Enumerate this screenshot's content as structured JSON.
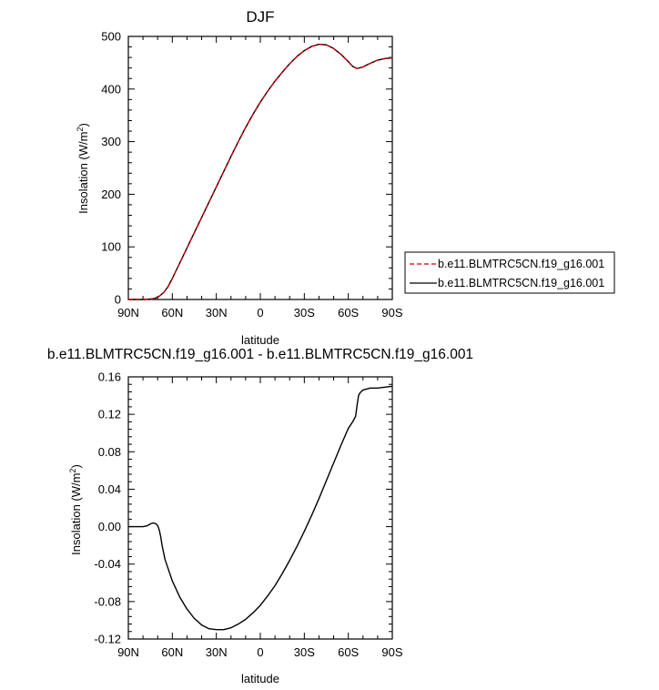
{
  "chart_data": [
    {
      "type": "line",
      "title": "DJF",
      "xlabel": "latitude",
      "ylabel_main": "Insolation (W/m",
      "ylabel_sup": "2",
      "ylabel_close": ")",
      "xlim": [
        90,
        -90
      ],
      "ylim": [
        0,
        500
      ],
      "x_ticks": [
        90,
        60,
        30,
        0,
        -30,
        -60,
        -90
      ],
      "x_tick_labels": [
        "90N",
        "60N",
        "30N",
        "0",
        "30S",
        "60S",
        "90S"
      ],
      "y_ticks": [
        0,
        100,
        200,
        300,
        400,
        500
      ],
      "y_tick_labels": [
        "0",
        "100",
        "200",
        "300",
        "400",
        "500"
      ],
      "legend_position": "right",
      "series": [
        {
          "name": "b.e11.BLMTRC5CN.f19_g16.001",
          "color": "#cc0000",
          "dash": "dashed",
          "x": [
            90,
            85,
            80,
            76,
            72,
            69,
            66,
            63,
            60,
            55,
            50,
            45,
            40,
            35,
            30,
            25,
            20,
            15,
            10,
            5,
            0,
            -5,
            -10,
            -15,
            -20,
            -25,
            -30,
            -35,
            -40,
            -45,
            -50,
            -55,
            -60,
            -63,
            -66,
            -70,
            -75,
            -80,
            -85,
            -90
          ],
          "y": [
            0,
            0,
            0,
            0.5,
            2,
            6,
            13,
            24,
            40,
            69,
            98,
            127,
            156,
            185,
            214,
            243,
            272,
            300,
            327,
            352,
            375,
            396,
            415,
            432,
            448,
            462,
            473,
            481,
            485,
            484,
            477,
            466,
            452,
            443,
            439,
            442,
            449,
            455,
            458,
            459
          ]
        },
        {
          "name": "b.e11.BLMTRC5CN.f19_g16.001",
          "color": "#000000",
          "dash": "solid",
          "x": [
            90,
            85,
            80,
            76,
            72,
            69,
            66,
            63,
            60,
            55,
            50,
            45,
            40,
            35,
            30,
            25,
            20,
            15,
            10,
            5,
            0,
            -5,
            -10,
            -15,
            -20,
            -25,
            -30,
            -35,
            -40,
            -45,
            -50,
            -55,
            -60,
            -63,
            -66,
            -70,
            -75,
            -80,
            -85,
            -90
          ],
          "y": [
            0,
            0,
            0,
            0.5,
            2,
            6,
            13,
            24,
            40,
            69,
            98,
            127,
            156,
            185,
            214,
            243,
            272,
            300,
            327,
            352,
            375,
            396,
            415,
            432,
            448,
            462,
            473,
            481,
            485,
            484,
            477,
            466,
            452,
            443,
            439,
            442,
            449,
            455,
            458,
            459
          ]
        }
      ]
    },
    {
      "type": "line",
      "title": "b.e11.BLMTRC5CN.f19_g16.001 - b.e11.BLMTRC5CN.f19_g16.001",
      "xlabel": "latitude",
      "ylabel_main": "Insolation (W/m",
      "ylabel_sup": "2",
      "ylabel_close": ")",
      "xlim": [
        90,
        -90
      ],
      "ylim": [
        -0.12,
        0.16
      ],
      "x_ticks": [
        90,
        60,
        30,
        0,
        -30,
        -60,
        -90
      ],
      "x_tick_labels": [
        "90N",
        "60N",
        "30N",
        "0",
        "30S",
        "60S",
        "90S"
      ],
      "y_ticks": [
        -0.12,
        -0.08,
        -0.04,
        0,
        0.04,
        0.08,
        0.12,
        0.16
      ],
      "y_tick_labels": [
        "-0.12",
        "-0.08",
        "-0.04",
        "0.00",
        "0.04",
        "0.08",
        "0.12",
        "0.16"
      ],
      "series": [
        {
          "color": "#000000",
          "dash": "solid",
          "x": [
            90,
            85,
            80,
            77,
            75,
            73,
            71,
            70,
            69,
            68,
            67,
            65,
            60,
            55,
            50,
            45,
            40,
            35,
            30,
            25,
            20,
            15,
            10,
            5,
            0,
            -5,
            -10,
            -15,
            -20,
            -25,
            -30,
            -35,
            -40,
            -45,
            -50,
            -55,
            -60,
            -63,
            -65,
            -66,
            -67,
            -68,
            -70,
            -75,
            -80,
            -85,
            -90
          ],
          "y": [
            0,
            0,
            0,
            0.001,
            0.003,
            0.004,
            0.003,
            0.001,
            -0.003,
            -0.01,
            -0.02,
            -0.035,
            -0.058,
            -0.075,
            -0.088,
            -0.098,
            -0.105,
            -0.109,
            -0.11,
            -0.11,
            -0.108,
            -0.104,
            -0.099,
            -0.092,
            -0.084,
            -0.074,
            -0.063,
            -0.05,
            -0.036,
            -0.021,
            -0.005,
            0.012,
            0.03,
            0.049,
            0.068,
            0.087,
            0.105,
            0.112,
            0.118,
            0.13,
            0.14,
            0.143,
            0.146,
            0.148,
            0.148,
            0.149,
            0.15
          ]
        }
      ]
    }
  ]
}
